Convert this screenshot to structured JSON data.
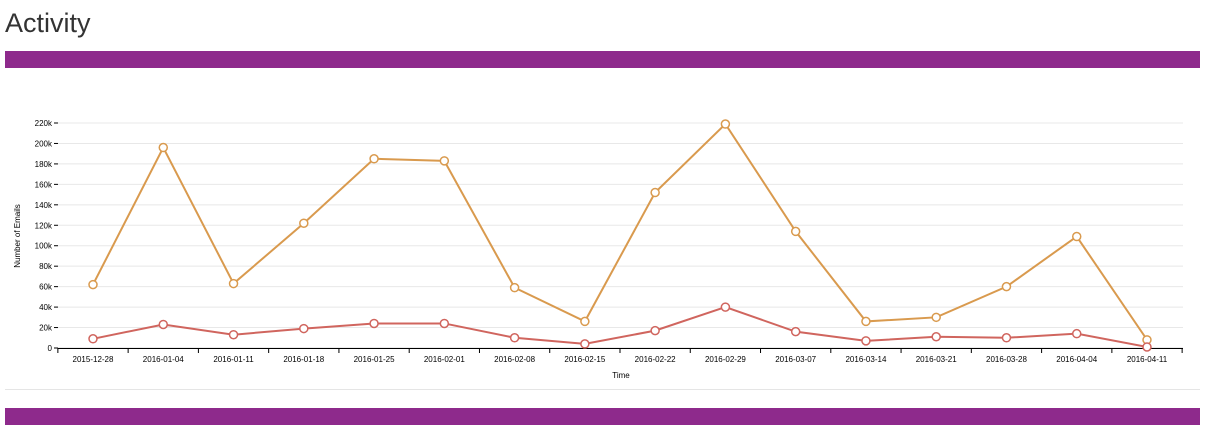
{
  "page": {
    "title": "Activity",
    "accent_color": "#8e2a8c"
  },
  "chart_data": {
    "type": "line",
    "title": "",
    "xlabel": "Time",
    "ylabel": "Number of Emails",
    "categories": [
      "2015-12-28",
      "2016-01-04",
      "2016-01-11",
      "2016-01-18",
      "2016-01-25",
      "2016-02-01",
      "2016-02-08",
      "2016-02-15",
      "2016-02-22",
      "2016-02-29",
      "2016-03-07",
      "2016-03-14",
      "2016-03-21",
      "2016-03-28",
      "2016-04-04",
      "2016-04-11"
    ],
    "ylim": [
      0,
      220000
    ],
    "y_ticks": [
      0,
      20000,
      40000,
      60000,
      80000,
      100000,
      120000,
      140000,
      160000,
      180000,
      200000,
      220000
    ],
    "y_tick_labels": [
      "0",
      "20k",
      "40k",
      "60k",
      "80k",
      "100k",
      "120k",
      "140k",
      "160k",
      "180k",
      "200k",
      "220k"
    ],
    "grid": "horizontal",
    "series": [
      {
        "color": "#d99a4e",
        "values": [
          62000,
          196000,
          63000,
          122000,
          185000,
          183000,
          59000,
          26000,
          152000,
          219000,
          114000,
          26000,
          30000,
          60000,
          109000,
          8000
        ]
      },
      {
        "color": "#d0655e",
        "values": [
          9000,
          23000,
          13000,
          19000,
          24000,
          24000,
          10000,
          4000,
          17000,
          40000,
          16000,
          7000,
          11000,
          10000,
          14000,
          1000
        ]
      }
    ]
  }
}
